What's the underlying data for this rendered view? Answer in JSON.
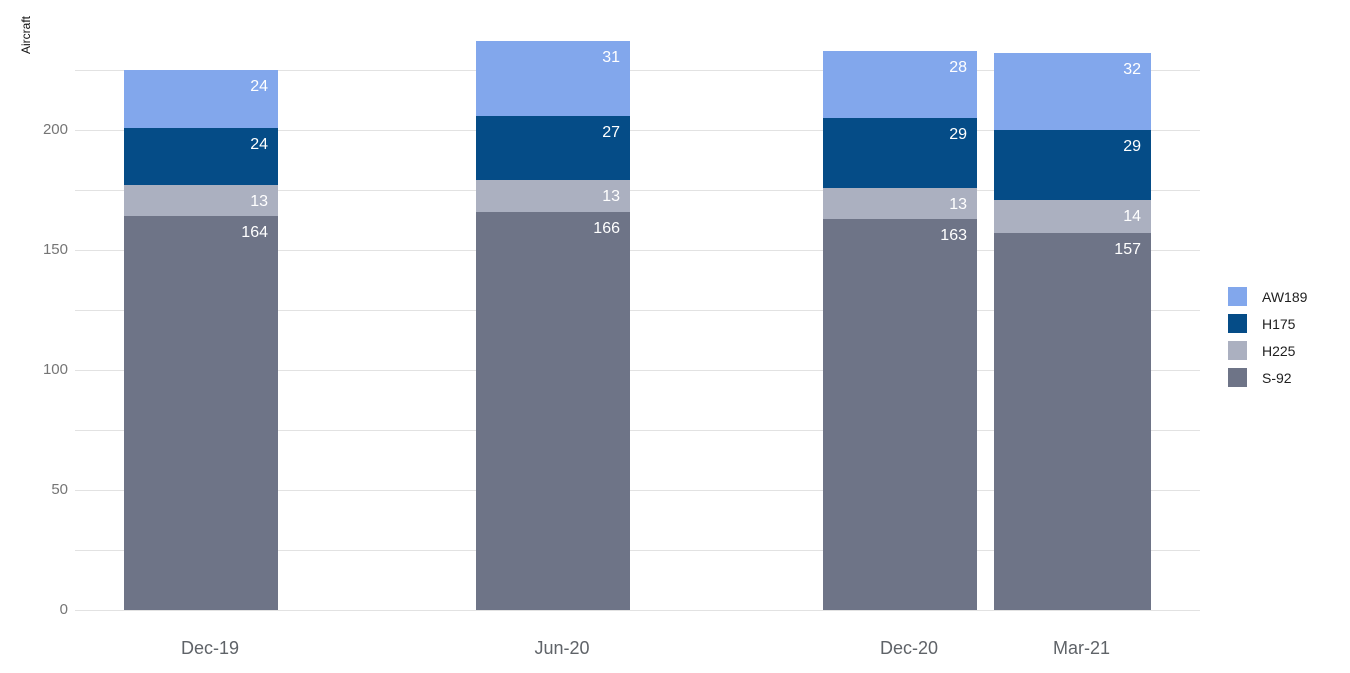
{
  "chart_data": {
    "type": "bar",
    "stacked": true,
    "title": "",
    "ylabel": "Aircraft",
    "xlabel": "",
    "categories": [
      "Dec-19",
      "Jun-20",
      "Dec-20",
      "Mar-21"
    ],
    "series": [
      {
        "name": "S-92",
        "color": "#6e7487",
        "values": [
          164,
          166,
          163,
          157
        ]
      },
      {
        "name": "H225",
        "color": "#abb0c0",
        "values": [
          13,
          13,
          13,
          14
        ]
      },
      {
        "name": "H175",
        "color": "#054c87",
        "values": [
          24,
          27,
          29,
          29
        ]
      },
      {
        "name": "AW189",
        "color": "#82a7ec",
        "values": [
          24,
          31,
          28,
          32
        ]
      }
    ],
    "totals": [
      225,
      237,
      233,
      232
    ],
    "legend": [
      "AW189",
      "H175",
      "H225",
      "S-92"
    ],
    "legend_position": "right",
    "yticks": [
      0,
      50,
      100,
      150,
      200
    ],
    "gridlines_every": 25,
    "ylim": [
      0,
      237
    ],
    "grid": true,
    "value_labels": "inside-top-right",
    "colors": {
      "background": "#ffffff",
      "grid": "#e2e2e2",
      "y_tick_text": "#757575",
      "category_text": "#5f6368",
      "value_label_text": "#ffffff",
      "legend_text": "#1f1f1f",
      "axis_title_text": "#111111"
    }
  }
}
